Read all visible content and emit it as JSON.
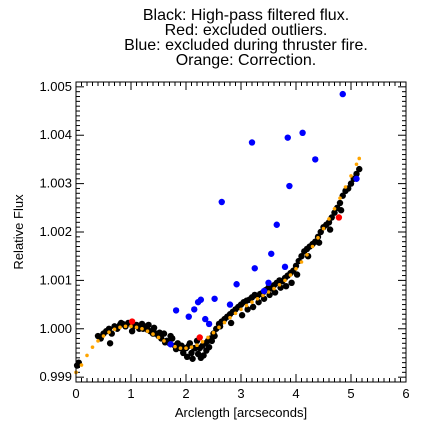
{
  "chart_data": {
    "type": "scatter",
    "title_lines": [
      "Black: High-pass filtered flux.",
      "Red: excluded outliers.",
      "Blue: excluded during thruster fire.",
      "Orange: Correction."
    ],
    "xlabel": "Arclength [arcseconds]",
    "ylabel": "Relative Flux",
    "xlim": [
      0,
      6
    ],
    "ylim": [
      0.9989,
      1.0051
    ],
    "x_ticks": [
      0,
      1,
      2,
      3,
      4,
      5,
      6
    ],
    "x_tick_labels": [
      "0",
      "1",
      "2",
      "3",
      "4",
      "5",
      "6"
    ],
    "y_ticks": [
      0.999,
      1.0,
      1.001,
      1.002,
      1.003,
      1.004,
      1.005
    ],
    "y_tick_labels": [
      "0.999",
      "1.000",
      "1.001",
      "1.002",
      "1.003",
      "1.004",
      "1.005"
    ],
    "grid": false,
    "legend": "none",
    "colors": {
      "black_points": "#000000",
      "red_points": "#ff0000",
      "blue_points": "#0000ff",
      "orange_correction": "#ffa500"
    },
    "series": [
      {
        "key": "flux",
        "color": "#000000",
        "x": [
          0.02,
          0.05,
          0.4,
          0.45,
          0.5,
          0.55,
          0.6,
          0.65,
          0.7,
          0.75,
          0.8,
          0.85,
          0.9,
          0.95,
          1.0,
          1.05,
          1.1,
          1.15,
          1.2,
          1.25,
          1.3,
          1.35,
          1.4,
          1.45,
          1.5,
          1.55,
          1.6,
          1.65,
          1.7,
          1.75,
          1.8,
          1.85,
          1.9,
          1.95,
          2.0,
          2.05,
          2.1,
          2.15,
          2.2,
          2.25,
          2.3,
          2.35,
          2.4,
          2.45,
          2.5,
          2.55,
          2.6,
          2.65,
          2.7,
          2.75,
          2.8,
          2.85,
          2.9,
          2.95,
          3.0,
          3.05,
          3.1,
          3.15,
          3.2,
          3.25,
          3.3,
          3.35,
          3.4,
          3.45,
          3.5,
          3.55,
          3.6,
          3.65,
          3.7,
          3.75,
          3.8,
          3.85,
          3.9,
          3.95,
          4.0,
          4.05,
          4.1,
          4.15,
          4.2,
          4.25,
          4.3,
          4.35,
          4.4,
          4.45,
          4.5,
          4.55,
          4.6,
          4.65,
          4.7,
          4.75,
          4.8,
          4.85,
          4.9,
          4.95,
          5.0,
          5.05,
          5.1,
          5.15,
          0.62,
          0.82,
          1.02,
          1.22,
          1.42,
          1.62,
          1.82,
          2.02,
          2.12,
          2.22,
          2.32,
          2.42,
          2.52,
          2.62,
          2.82,
          3.02,
          3.22,
          3.42,
          3.62,
          3.82,
          4.02,
          4.22,
          4.42,
          4.62,
          4.82,
          2.07,
          2.17,
          2.27,
          2.37,
          2.47,
          3.12,
          3.32,
          3.52,
          3.72,
          3.92,
          1.32,
          1.52,
          1.72,
          1.92
        ],
        "y": [
          0.99924,
          0.9993,
          0.99985,
          0.9998,
          0.9999,
          0.99995,
          1.0,
          0.9999,
          1.00005,
          1.0,
          1.00008,
          1.0001,
          1.00005,
          1.00012,
          1.0001,
          1.00005,
          1.00008,
          1.0,
          1.0001,
          1.00005,
          0.99998,
          0.99995,
          0.9999,
          0.9999,
          0.99985,
          0.9998,
          0.9999,
          0.99975,
          0.9997,
          0.9998,
          0.99965,
          0.9997,
          0.9996,
          0.9995,
          0.9996,
          0.99965,
          0.9995,
          0.9996,
          0.99975,
          0.9996,
          0.99965,
          0.9997,
          0.99975,
          0.9998,
          0.9999,
          1.0,
          1.0001,
          1.00015,
          1.0002,
          1.00025,
          1.0003,
          1.00035,
          1.0004,
          1.00045,
          1.0005,
          1.00055,
          1.00058,
          1.0006,
          1.00065,
          1.0007,
          1.00068,
          1.00072,
          1.00075,
          1.0008,
          1.00085,
          1.00083,
          1.0009,
          1.00095,
          1.001,
          1.00098,
          1.00105,
          1.0011,
          1.00115,
          1.0012,
          1.0013,
          1.0014,
          1.0015,
          1.0016,
          1.00165,
          1.0017,
          1.00175,
          1.0018,
          1.0019,
          1.002,
          1.0021,
          1.00215,
          1.0022,
          1.0023,
          1.0024,
          1.0025,
          1.0026,
          1.00275,
          1.00285,
          1.0029,
          1.003,
          1.0031,
          1.0032,
          1.0033,
          0.9997,
          1.00012,
          0.99995,
          1.0,
          1.00002,
          0.99972,
          0.99958,
          0.99942,
          0.99938,
          0.99948,
          0.99945,
          0.99962,
          0.99985,
          1.00005,
          1.00012,
          1.00028,
          1.00045,
          1.00062,
          1.00075,
          1.00088,
          1.00112,
          1.0015,
          1.00178,
          1.00205,
          1.00245,
          0.9997,
          0.9996,
          0.9994,
          0.99955,
          0.99975,
          1.0004,
          1.00055,
          1.0007,
          1.00085,
          1.00095,
          1.00008,
          0.99992,
          0.99985,
          0.99965
        ]
      },
      {
        "key": "outliers",
        "color": "#ff0000",
        "x": [
          1.02,
          2.25,
          4.78
        ],
        "y": [
          1.00015,
          0.99982,
          1.0023
        ]
      },
      {
        "key": "thruster",
        "color": "#0000ff",
        "x": [
          1.72,
          2.05,
          2.15,
          2.22,
          2.27,
          2.35,
          2.42,
          2.52,
          2.65,
          2.8,
          2.92,
          3.2,
          3.25,
          3.42,
          3.5,
          3.55,
          3.65,
          3.8,
          3.85,
          3.88,
          4.12,
          4.35,
          4.85,
          5.1,
          1.82
        ],
        "y": [
          0.99968,
          1.00025,
          1.0004,
          1.00055,
          1.0006,
          1.0002,
          1.0001,
          1.00062,
          1.00262,
          1.0005,
          1.00092,
          1.00385,
          1.00125,
          1.00078,
          1.00095,
          1.00155,
          1.00215,
          1.00128,
          1.00395,
          1.00295,
          1.00405,
          1.0035,
          1.00485,
          1.0031,
          1.00038
        ]
      },
      {
        "key": "correction",
        "color": "#ffa500",
        "x": [
          0.0,
          0.1,
          0.2,
          0.3,
          0.4,
          0.5,
          0.6,
          0.7,
          0.8,
          0.9,
          1.0,
          1.1,
          1.2,
          1.3,
          1.4,
          1.5,
          1.6,
          1.7,
          1.8,
          1.9,
          2.0,
          2.1,
          2.2,
          2.3,
          2.4,
          2.5,
          2.6,
          2.7,
          2.8,
          2.9,
          3.0,
          3.1,
          3.2,
          3.3,
          3.4,
          3.5,
          3.6,
          3.7,
          3.8,
          3.9,
          4.0,
          4.1,
          4.2,
          4.3,
          4.4,
          4.5,
          4.6,
          4.7,
          4.8,
          4.9,
          5.0,
          5.1,
          5.15
        ],
        "y": [
          0.9991,
          0.99925,
          0.99945,
          0.99962,
          0.99975,
          0.99985,
          0.99993,
          0.99999,
          1.00003,
          1.00005,
          1.00005,
          1.00003,
          1.0,
          0.99995,
          0.99989,
          0.99982,
          0.99975,
          0.99968,
          0.99963,
          0.9996,
          0.9996,
          0.99962,
          0.99966,
          0.99973,
          0.99982,
          0.99992,
          1.00003,
          1.00013,
          1.00023,
          1.00032,
          1.0004,
          1.00048,
          1.00055,
          1.00062,
          1.00069,
          1.00076,
          1.00083,
          1.00091,
          1.001,
          1.00111,
          1.00124,
          1.00138,
          1.00153,
          1.0017,
          1.00188,
          1.00207,
          1.00227,
          1.00248,
          1.0027,
          1.00293,
          1.00316,
          1.0034,
          1.00352
        ]
      }
    ]
  }
}
